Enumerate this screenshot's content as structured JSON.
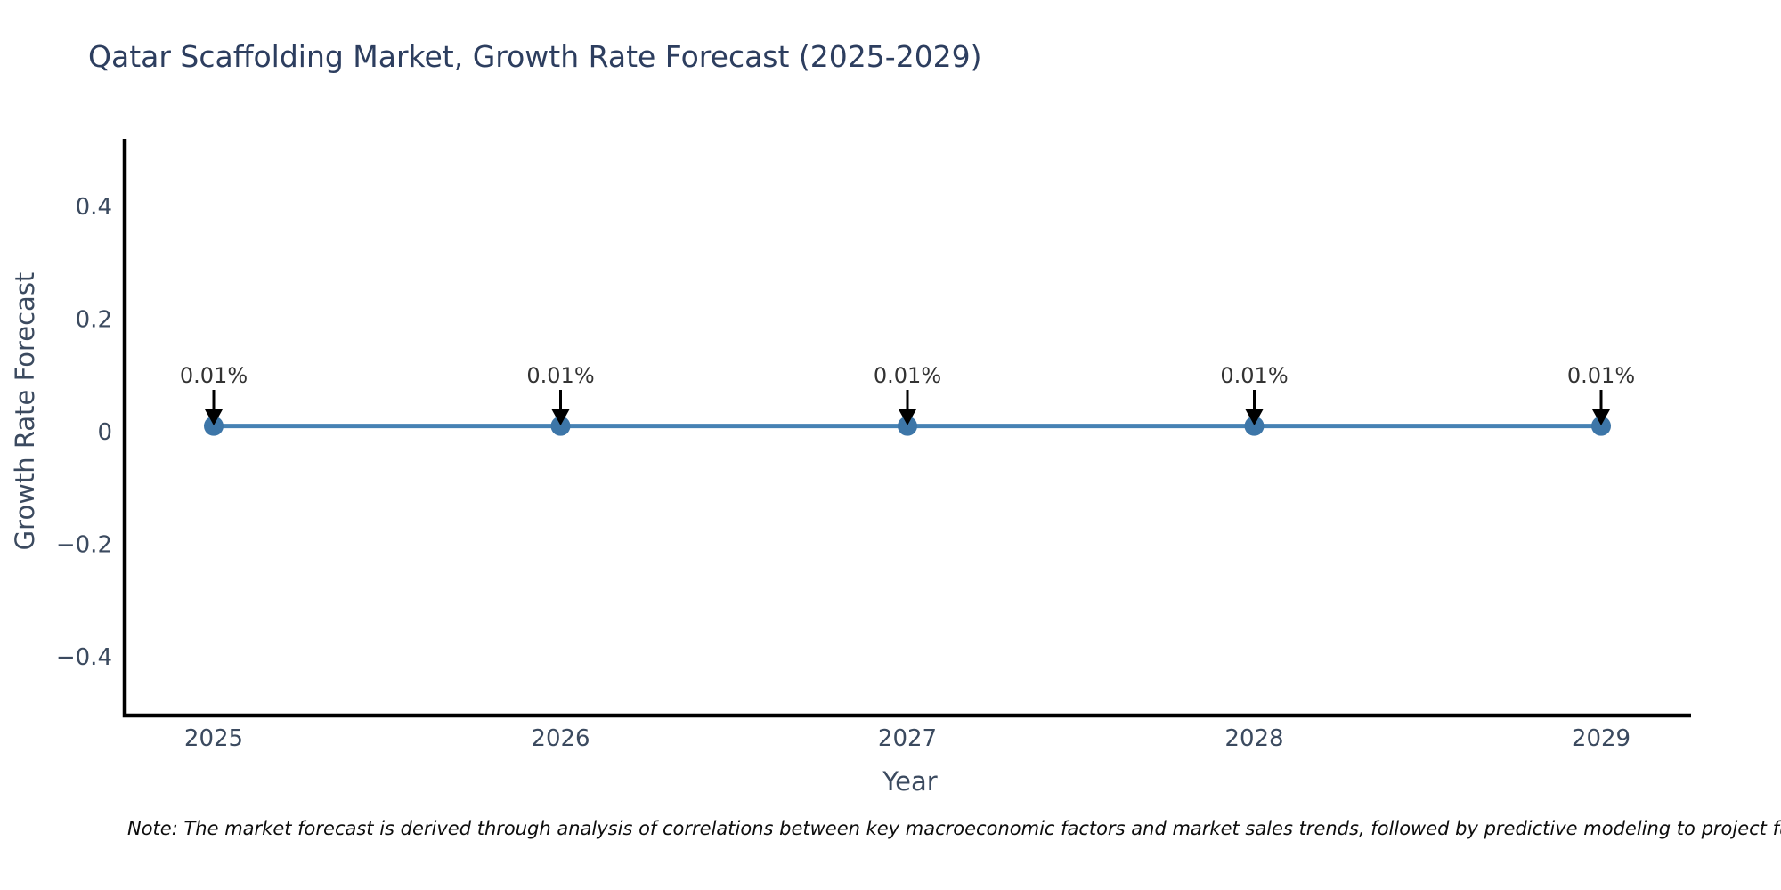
{
  "page": {
    "background_color": "#ffffff"
  },
  "header": {
    "title": "Qatar Scaffolding Market, Growth Rate Forecast (2025-2029)",
    "title_color": "#2d3e5f"
  },
  "chart_data": {
    "type": "line",
    "title": "Qatar Scaffolding Market, Growth Rate Forecast (2025-2029)",
    "xlabel": "Year",
    "ylabel": "Growth Rate Forecast",
    "x": [
      2025,
      2026,
      2027,
      2028,
      2029
    ],
    "series": [
      {
        "name": "Growth Rate Forecast",
        "values": [
          0.01,
          0.01,
          0.01,
          0.01,
          0.01
        ],
        "point_labels": [
          "0.01%",
          "0.01%",
          "0.01%",
          "0.01%",
          "0.01%"
        ]
      }
    ],
    "xtick_labels": [
      "2025",
      "2026",
      "2027",
      "2028",
      "2029"
    ],
    "yticks": [
      0.4,
      0.2,
      0,
      -0.2,
      -0.4
    ],
    "ytick_labels": [
      "0.4",
      "0.2",
      "0",
      "−0.2",
      "−0.4"
    ],
    "ylim": [
      -0.5,
      0.5
    ],
    "grid": false,
    "legend": "none",
    "colors": {
      "line": "#4682b4",
      "marker": "#3d76a8",
      "axis_spine": "#000000",
      "tick_text": "#3b4a5f",
      "annotation_text": "#333333",
      "annotation_arrow": "#000000"
    }
  },
  "footnote": {
    "text": "Note: The market forecast is derived through analysis of correlations between key macroeconomic factors and market sales trends, followed by predictive modeling to project future sa"
  }
}
